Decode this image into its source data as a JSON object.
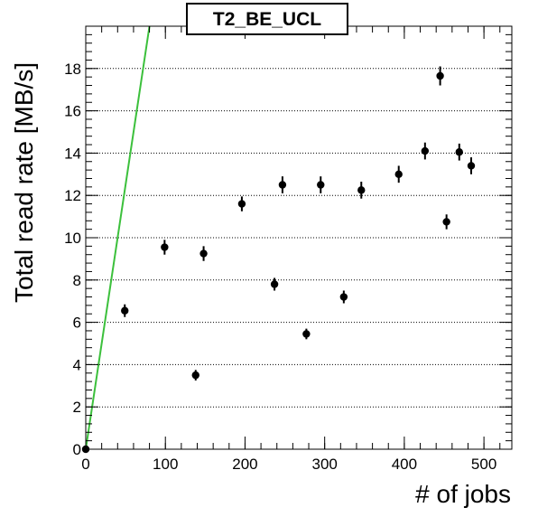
{
  "chart_data": {
    "type": "scatter",
    "title": "T2_BE_UCL",
    "xlabel": "# of jobs",
    "ylabel": "Total read rate [MB/s]",
    "xlim": [
      0,
      535
    ],
    "ylim": [
      0,
      20
    ],
    "xticks": [
      0,
      100,
      200,
      300,
      400,
      500
    ],
    "yticks": [
      0,
      2,
      4,
      6,
      8,
      10,
      12,
      14,
      16,
      18
    ],
    "grid": {
      "horizontal": true,
      "vertical": false
    },
    "colors": {
      "points": "#000000",
      "fit_line": "#3cc03c",
      "frame": "#000000",
      "grid": "#000000"
    },
    "series": [
      {
        "type": "points_with_errors",
        "points": [
          {
            "x": 0,
            "y": 0.0,
            "err": 0.1
          },
          {
            "x": 49,
            "y": 6.55,
            "err": 0.3
          },
          {
            "x": 99,
            "y": 9.55,
            "err": 0.35
          },
          {
            "x": 138,
            "y": 3.5,
            "err": 0.25
          },
          {
            "x": 148,
            "y": 9.25,
            "err": 0.35
          },
          {
            "x": 196,
            "y": 11.6,
            "err": 0.35
          },
          {
            "x": 237,
            "y": 7.8,
            "err": 0.3
          },
          {
            "x": 247,
            "y": 12.5,
            "err": 0.4
          },
          {
            "x": 277,
            "y": 5.45,
            "err": 0.25
          },
          {
            "x": 295,
            "y": 12.5,
            "err": 0.4
          },
          {
            "x": 324,
            "y": 7.2,
            "err": 0.3
          },
          {
            "x": 346,
            "y": 12.25,
            "err": 0.4
          },
          {
            "x": 393,
            "y": 13.0,
            "err": 0.4
          },
          {
            "x": 426,
            "y": 14.1,
            "err": 0.4
          },
          {
            "x": 445,
            "y": 17.65,
            "err": 0.45
          },
          {
            "x": 453,
            "y": 10.75,
            "err": 0.35
          },
          {
            "x": 469,
            "y": 14.05,
            "err": 0.4
          },
          {
            "x": 484,
            "y": 13.4,
            "err": 0.4
          }
        ]
      },
      {
        "type": "line",
        "x": [
          0,
          80
        ],
        "y": [
          0,
          20
        ]
      }
    ]
  }
}
